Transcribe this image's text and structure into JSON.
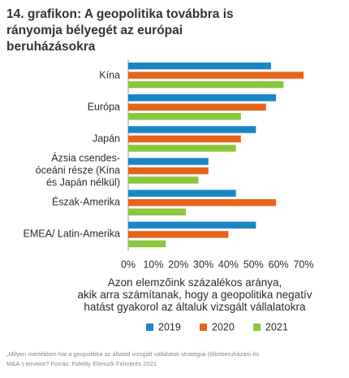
{
  "chart_data": {
    "type": "hbar",
    "title": "14. grafikon: A geopolitika továbbra is rányomja bélyegét az európai beruházásokra",
    "categories": [
      "Kína",
      "Európa",
      "Japán",
      "Ázsia csendes-\nóceáni része (Kína\nés Japán nélkül)",
      "Észak-Amerika",
      "EMEA/ Latin-Amerika"
    ],
    "series": [
      {
        "name": "2019",
        "color": "#1a87c5",
        "values": [
          57,
          59,
          51,
          32,
          43,
          51
        ]
      },
      {
        "name": "2020",
        "color": "#e8641b",
        "values": [
          70,
          55,
          45,
          32,
          59,
          40
        ]
      },
      {
        "name": "2021",
        "color": "#8cc63f",
        "values": [
          62,
          45,
          43,
          28,
          23,
          15
        ]
      }
    ],
    "xlim": [
      0,
      70
    ],
    "xticks": [
      {
        "value": 0,
        "label": "0%"
      },
      {
        "value": 10,
        "label": "10%"
      },
      {
        "value": 20,
        "label": "20%"
      },
      {
        "value": 30,
        "label": "30%"
      },
      {
        "value": 40,
        "label": "40%"
      },
      {
        "value": 50,
        "label": "50%"
      },
      {
        "value": 60,
        "label": "60%"
      },
      {
        "value": 70,
        "label": "70%"
      }
    ],
    "x_label": "Azon elemzőink százalékos aránya,\nakik arra számítanak, hogy a geopolitika negatív\nhatást gyakorol az általuk vizsgált vállalatokra",
    "source": "„Milyen mértékben hat a geopolitika az általad vizsgált vállalatok stratégiai (tőkeberuházási és M&A-) terveire? Forrás: Fidelity Elemzői Felmérés 2021"
  }
}
